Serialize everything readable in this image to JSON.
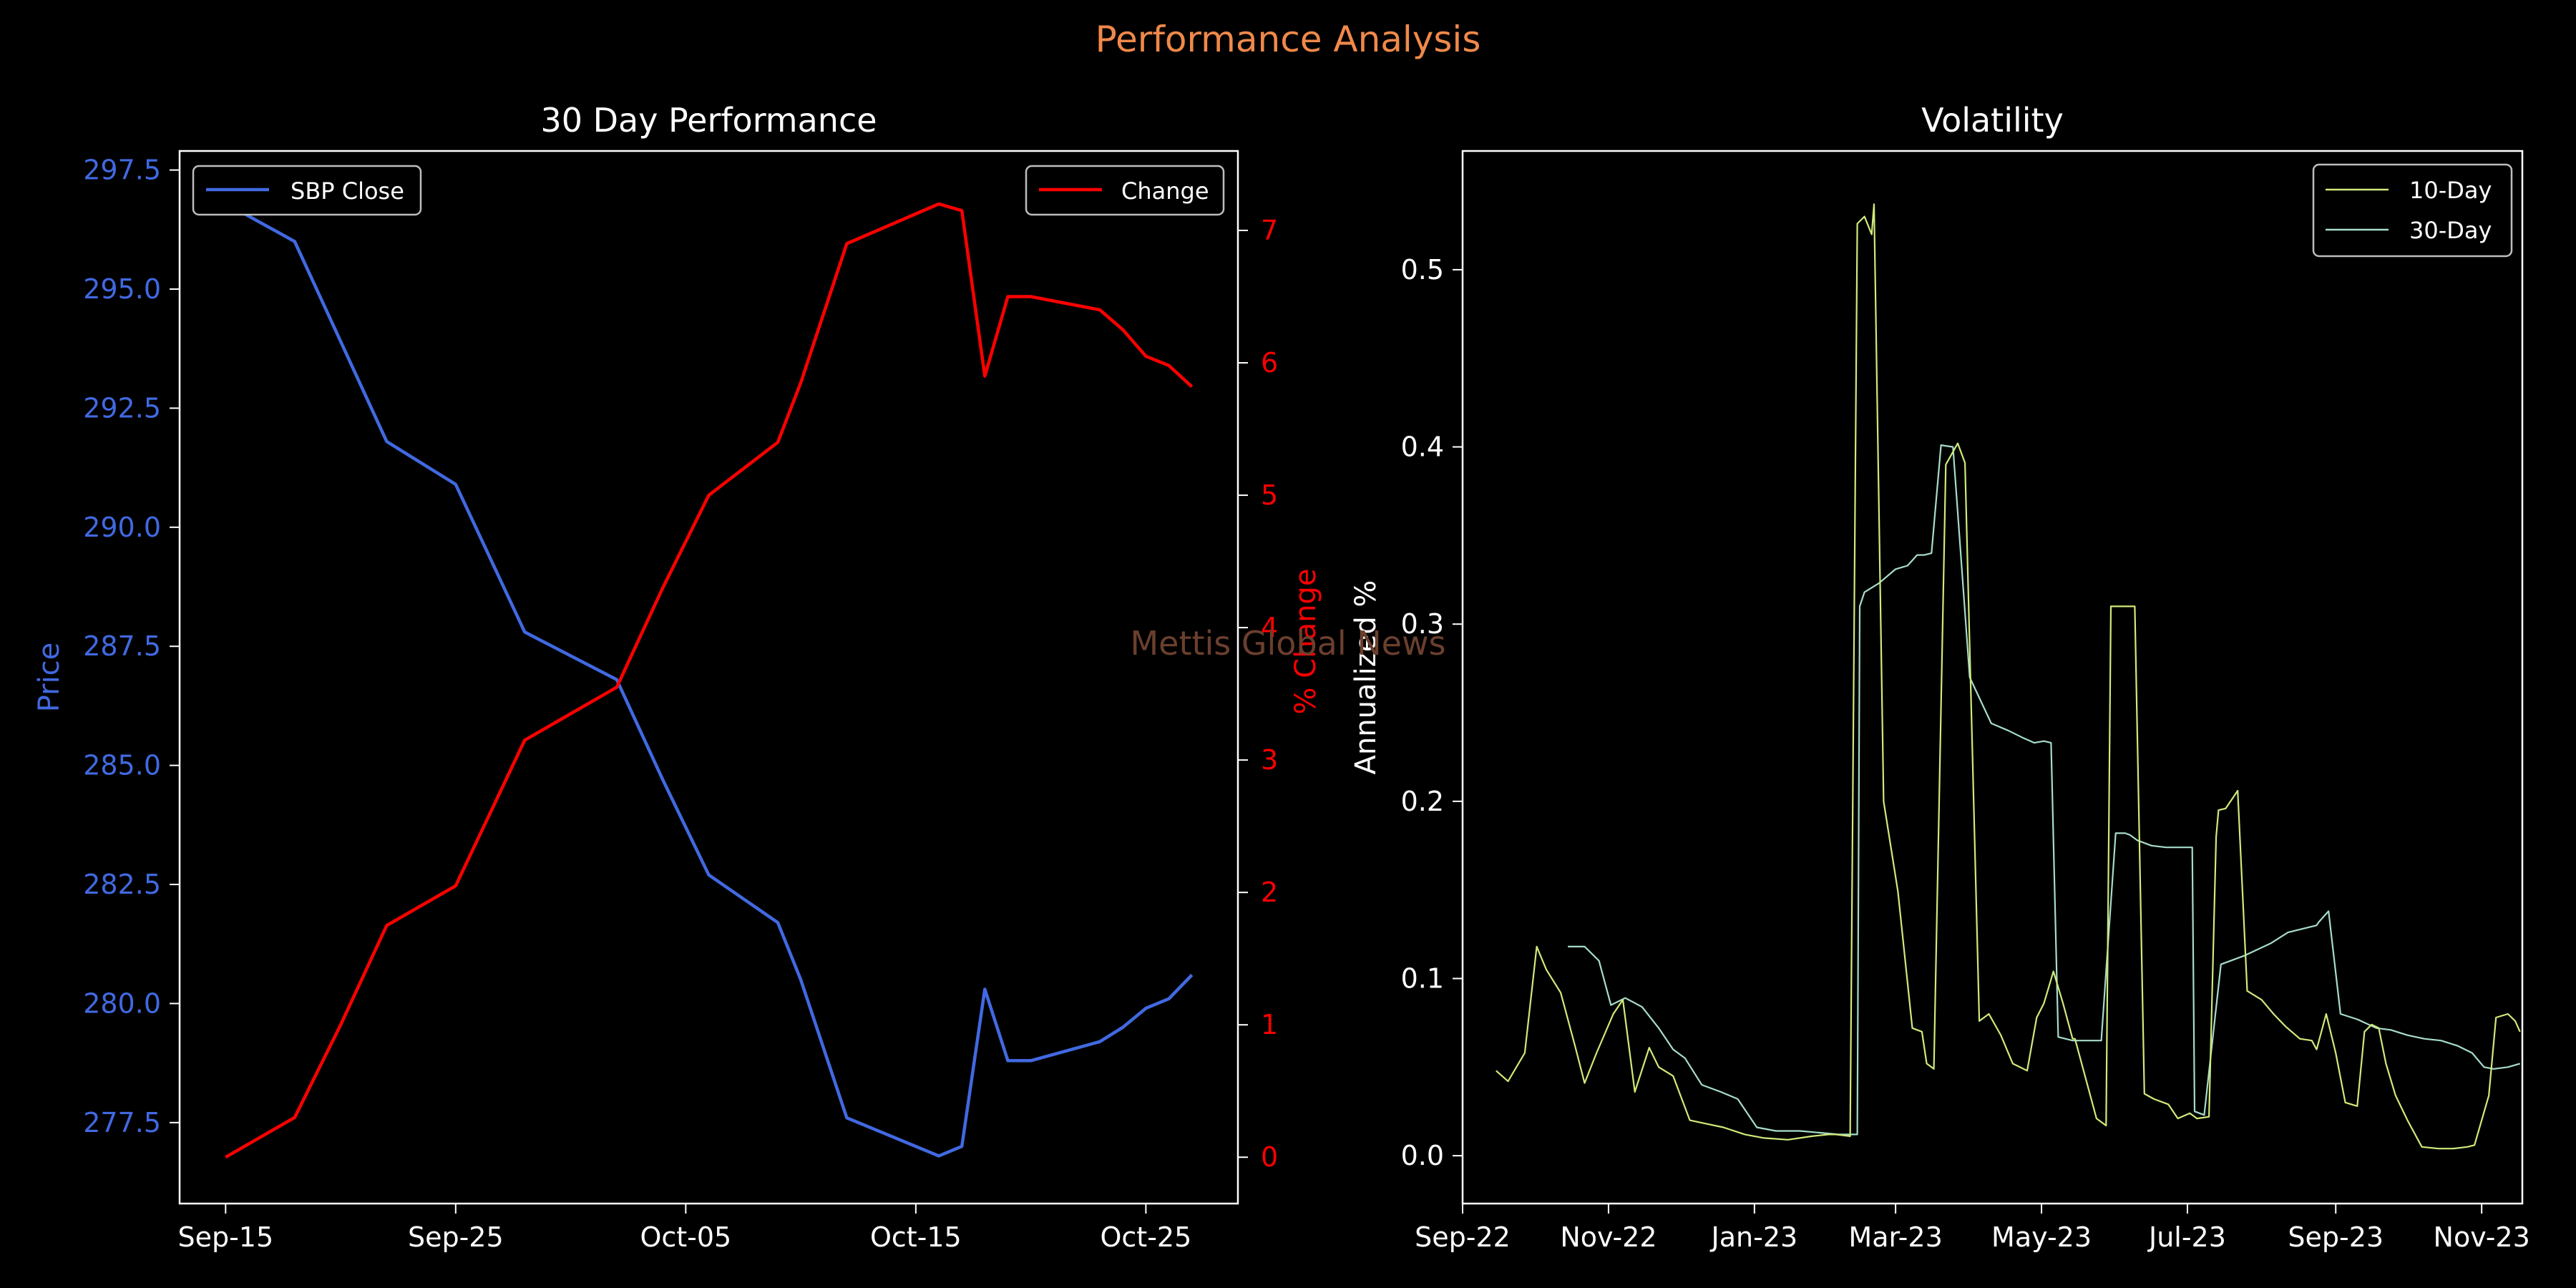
{
  "suptitle": "Performance Analysis",
  "watermark": "Mettis Global News",
  "colors": {
    "background": "#000000",
    "price": "#4169e1",
    "change": "#ff0000",
    "vol10": "#d0ea7a",
    "vol30": "#a6dccc",
    "suptitle": "#f0894a",
    "axes": "#ffffff",
    "watermark": "#6b3f2e"
  },
  "chart_data": [
    {
      "type": "line",
      "title": "30 Day Performance",
      "xlabel": "",
      "x_ticks": [
        "Sep-15",
        "Sep-25",
        "Oct-05",
        "Oct-15",
        "Oct-25"
      ],
      "x_tick_values": [
        "2023-09-15",
        "2023-09-25",
        "2023-10-05",
        "2023-10-15",
        "2023-10-25"
      ],
      "xlim": [
        "2023-09-13",
        "2023-10-29"
      ],
      "left_axis": {
        "label": "Price",
        "ylim": [
          275.8,
          297.9
        ],
        "ticks": [
          "277.5",
          "280.0",
          "282.5",
          "285.0",
          "287.5",
          "290.0",
          "292.5",
          "295.0",
          "297.5"
        ]
      },
      "right_axis": {
        "label": "% Change",
        "ylim": [
          -0.35,
          7.6
        ],
        "ticks": [
          "0",
          "1",
          "2",
          "3",
          "4",
          "5",
          "6",
          "7"
        ]
      },
      "legend_left": {
        "position": "top-left"
      },
      "legend_right": {
        "position": "top-right"
      },
      "series": [
        {
          "name": "SBP Close",
          "axis": "left",
          "x": [
            "2023-09-15",
            "2023-09-18",
            "2023-09-20",
            "2023-09-22",
            "2023-09-25",
            "2023-09-28",
            "2023-10-02",
            "2023-10-04",
            "2023-10-06",
            "2023-10-09",
            "2023-10-10",
            "2023-10-12",
            "2023-10-16",
            "2023-10-17",
            "2023-10-18",
            "2023-10-19",
            "2023-10-20",
            "2023-10-23",
            "2023-10-24",
            "2023-10-25",
            "2023-10-26",
            "2023-10-27"
          ],
          "y": [
            296.8,
            296.0,
            293.9,
            291.8,
            290.9,
            287.8,
            286.8,
            284.7,
            282.7,
            281.7,
            280.5,
            277.6,
            276.8,
            277.0,
            280.3,
            278.8,
            278.8,
            279.2,
            279.5,
            279.9,
            280.1,
            280.6
          ]
        },
        {
          "name": "Change",
          "axis": "right",
          "x": [
            "2023-09-15",
            "2023-09-18",
            "2023-09-20",
            "2023-09-22",
            "2023-09-25",
            "2023-09-28",
            "2023-10-02",
            "2023-10-04",
            "2023-10-06",
            "2023-10-09",
            "2023-10-10",
            "2023-10-12",
            "2023-10-16",
            "2023-10-17",
            "2023-10-18",
            "2023-10-19",
            "2023-10-20",
            "2023-10-23",
            "2023-10-24",
            "2023-10-25",
            "2023-10-26",
            "2023-10-27"
          ],
          "y": [
            0.0,
            0.3,
            1.0,
            1.75,
            2.05,
            3.15,
            3.55,
            4.3,
            5.0,
            5.4,
            5.85,
            6.9,
            7.2,
            7.15,
            5.9,
            6.5,
            6.5,
            6.4,
            6.25,
            6.05,
            5.98,
            5.82
          ]
        }
      ]
    },
    {
      "type": "line",
      "title": "Volatility",
      "xlabel": "",
      "ylabel": "Annualized %",
      "ylim": [
        -0.027,
        0.567
      ],
      "y_ticks": [
        "0.0",
        "0.1",
        "0.2",
        "0.3",
        "0.4",
        "0.5"
      ],
      "x_ticks": [
        "Sep-22",
        "Nov-22",
        "Jan-23",
        "Mar-23",
        "May-23",
        "Jul-23",
        "Sep-23",
        "Nov-23"
      ],
      "x_tick_values": [
        "2022-09-01",
        "2022-11-01",
        "2023-01-01",
        "2023-03-01",
        "2023-05-01",
        "2023-07-01",
        "2023-09-01",
        "2023-11-01"
      ],
      "xlim": [
        "2022-09-01",
        "2023-11-18"
      ],
      "legend": {
        "position": "top-right"
      },
      "series": [
        {
          "name": "10-Day",
          "x": [
            "2022-09-15",
            "2022-09-20",
            "2022-09-27",
            "2022-10-02",
            "2022-10-06",
            "2022-10-12",
            "2022-10-18",
            "2022-10-22",
            "2022-10-27",
            "2022-11-03",
            "2022-11-07",
            "2022-11-12",
            "2022-11-18",
            "2022-11-22",
            "2022-11-28",
            "2022-12-05",
            "2022-12-12",
            "2022-12-19",
            "2022-12-28",
            "2023-01-05",
            "2023-01-15",
            "2023-01-25",
            "2023-02-01",
            "2023-02-04",
            "2023-02-10",
            "2023-02-13",
            "2023-02-16",
            "2023-02-19",
            "2023-02-20",
            "2023-02-24",
            "2023-03-02",
            "2023-03-08",
            "2023-03-12",
            "2023-03-14",
            "2023-03-17",
            "2023-03-22",
            "2023-03-27",
            "2023-03-30",
            "2023-04-05",
            "2023-04-09",
            "2023-04-14",
            "2023-04-19",
            "2023-04-25",
            "2023-04-29",
            "2023-05-02",
            "2023-05-06",
            "2023-05-10",
            "2023-05-14",
            "2023-05-15",
            "2023-05-24",
            "2023-05-28",
            "2023-05-30",
            "2023-06-02",
            "2023-06-09",
            "2023-06-13",
            "2023-06-17",
            "2023-06-23",
            "2023-06-27",
            "2023-07-02",
            "2023-07-05",
            "2023-07-10",
            "2023-07-13",
            "2023-07-14",
            "2023-07-17",
            "2023-07-22",
            "2023-07-26",
            "2023-08-01",
            "2023-08-06",
            "2023-08-11",
            "2023-08-17",
            "2023-08-22",
            "2023-08-24",
            "2023-08-28",
            "2023-09-01",
            "2023-09-05",
            "2023-09-10",
            "2023-09-13",
            "2023-09-16",
            "2023-09-19",
            "2023-09-22",
            "2023-09-26",
            "2023-10-01",
            "2023-10-07",
            "2023-10-14",
            "2023-10-20",
            "2023-10-26",
            "2023-10-29",
            "2023-11-04",
            "2023-11-07",
            "2023-11-12",
            "2023-11-15",
            "2023-11-17"
          ],
          "y": [
            0.048,
            0.042,
            0.058,
            0.118,
            0.105,
            0.092,
            0.062,
            0.041,
            0.058,
            0.08,
            0.088,
            0.036,
            0.061,
            0.05,
            0.045,
            0.02,
            0.018,
            0.016,
            0.012,
            0.01,
            0.009,
            0.011,
            0.012,
            0.012,
            0.011,
            0.526,
            0.53,
            0.52,
            0.537,
            0.2,
            0.149,
            0.072,
            0.07,
            0.052,
            0.049,
            0.39,
            0.402,
            0.391,
            0.076,
            0.08,
            0.068,
            0.052,
            0.048,
            0.078,
            0.086,
            0.104,
            0.086,
            0.066,
            0.066,
            0.021,
            0.017,
            0.31,
            0.31,
            0.31,
            0.035,
            0.032,
            0.029,
            0.021,
            0.024,
            0.021,
            0.022,
            0.18,
            0.195,
            0.196,
            0.206,
            0.093,
            0.088,
            0.08,
            0.073,
            0.066,
            0.065,
            0.06,
            0.08,
            0.058,
            0.03,
            0.028,
            0.07,
            0.074,
            0.072,
            0.052,
            0.034,
            0.02,
            0.005,
            0.004,
            0.004,
            0.005,
            0.006,
            0.034,
            0.078,
            0.08,
            0.076,
            0.07
          ]
        },
        {
          "name": "30-Day",
          "x": [
            "2022-10-15",
            "2022-10-22",
            "2022-10-28",
            "2022-11-02",
            "2022-11-08",
            "2022-11-15",
            "2022-11-22",
            "2022-11-28",
            "2022-12-03",
            "2022-12-10",
            "2022-12-18",
            "2022-12-25",
            "2023-01-02",
            "2023-01-10",
            "2023-01-20",
            "2023-01-28",
            "2023-02-05",
            "2023-02-10",
            "2023-02-13",
            "2023-02-14",
            "2023-02-16",
            "2023-02-22",
            "2023-03-01",
            "2023-03-06",
            "2023-03-08",
            "2023-03-10",
            "2023-03-13",
            "2023-03-16",
            "2023-03-20",
            "2023-03-25",
            "2023-04-01",
            "2023-04-10",
            "2023-04-17",
            "2023-04-23",
            "2023-04-28",
            "2023-05-02",
            "2023-05-05",
            "2023-05-08",
            "2023-05-14",
            "2023-05-20",
            "2023-05-26",
            "2023-06-01",
            "2023-06-05",
            "2023-06-07",
            "2023-06-10",
            "2023-06-16",
            "2023-06-22",
            "2023-07-01",
            "2023-07-03",
            "2023-07-04",
            "2023-07-08",
            "2023-07-15",
            "2023-07-25",
            "2023-08-05",
            "2023-08-12",
            "2023-08-24",
            "2023-08-25",
            "2023-08-29",
            "2023-09-03",
            "2023-09-10",
            "2023-09-18",
            "2023-09-24",
            "2023-10-01",
            "2023-10-08",
            "2023-10-15",
            "2023-10-22",
            "2023-10-28",
            "2023-11-02",
            "2023-11-06",
            "2023-11-12",
            "2023-11-17"
          ],
          "y": [
            0.118,
            0.118,
            0.11,
            0.085,
            0.089,
            0.084,
            0.072,
            0.06,
            0.055,
            0.04,
            0.036,
            0.032,
            0.016,
            0.014,
            0.014,
            0.013,
            0.012,
            0.012,
            0.012,
            0.31,
            0.318,
            0.323,
            0.331,
            0.333,
            0.336,
            0.339,
            0.339,
            0.34,
            0.401,
            0.4,
            0.27,
            0.244,
            0.24,
            0.236,
            0.233,
            0.234,
            0.233,
            0.067,
            0.065,
            0.065,
            0.065,
            0.182,
            0.182,
            0.181,
            0.178,
            0.175,
            0.174,
            0.174,
            0.174,
            0.025,
            0.023,
            0.108,
            0.113,
            0.12,
            0.126,
            0.13,
            0.132,
            0.138,
            0.08,
            0.077,
            0.072,
            0.071,
            0.068,
            0.066,
            0.065,
            0.062,
            0.058,
            0.05,
            0.049,
            0.05,
            0.052
          ]
        }
      ]
    }
  ]
}
